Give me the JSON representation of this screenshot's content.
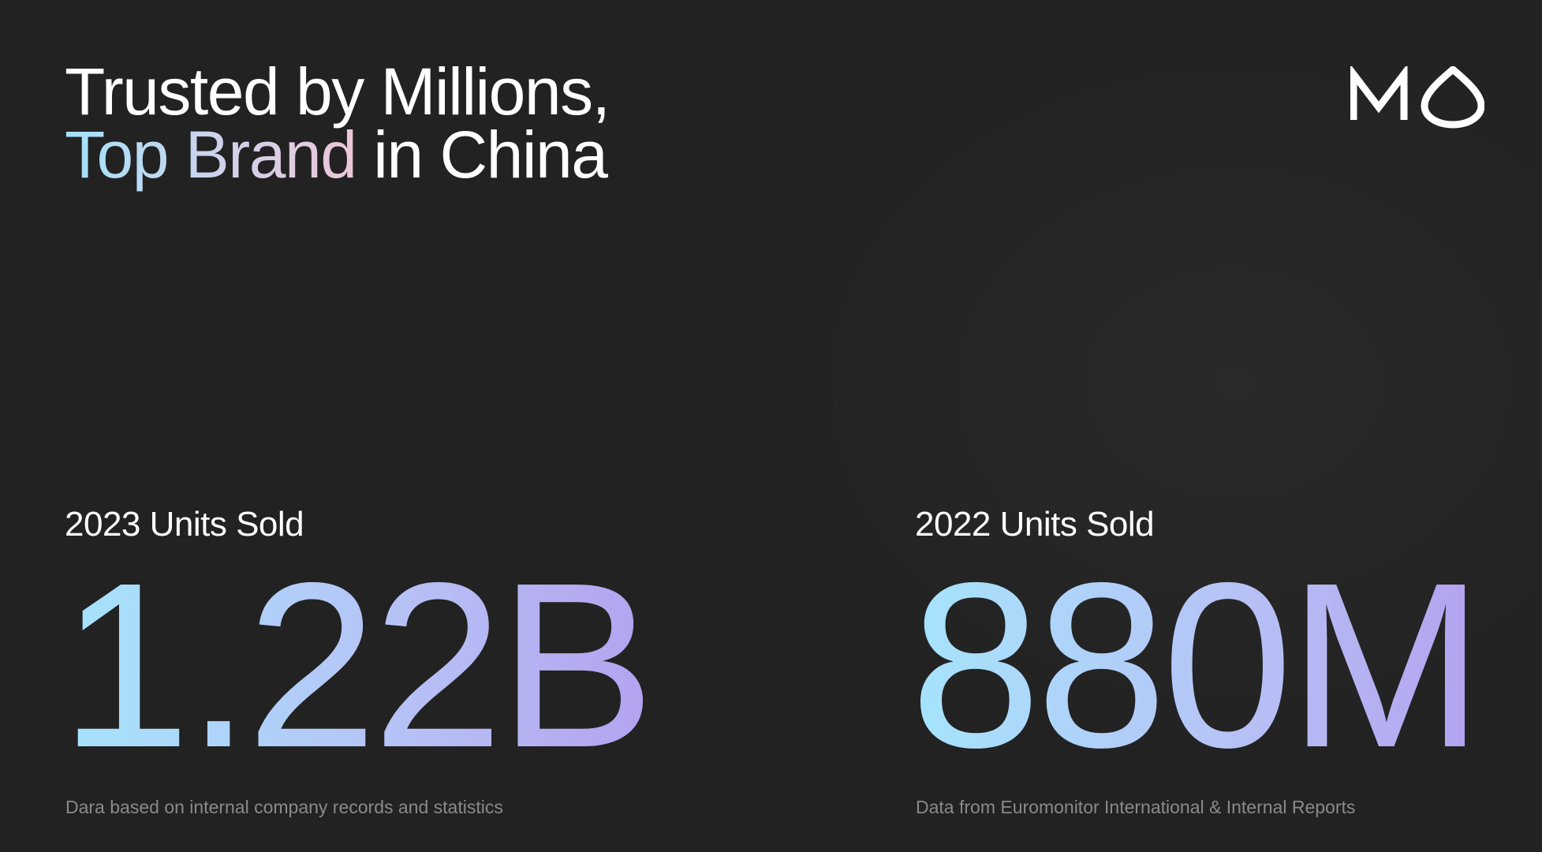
{
  "headline": {
    "line1": "Trusted by Millions,",
    "line2_highlight": "Top Brand",
    "line2_rest": " in China"
  },
  "logo": {
    "icon": "mo-logo-icon",
    "color": "#ffffff"
  },
  "stats": [
    {
      "label": "2023 Units Sold",
      "value": "1.22B",
      "note": "Dara based on internal company records and statistics"
    },
    {
      "label": "2022 Units Sold",
      "value": "880M",
      "note": "Data from Euromonitor International & Internal Reports"
    }
  ],
  "colors": {
    "background": "#222222",
    "headline_gradient": [
      "#a3e2fb",
      "#ecc7d8"
    ],
    "value_gradient": [
      "#a6e4fc",
      "#b4a2ef"
    ],
    "note": "#8a8a8a"
  }
}
